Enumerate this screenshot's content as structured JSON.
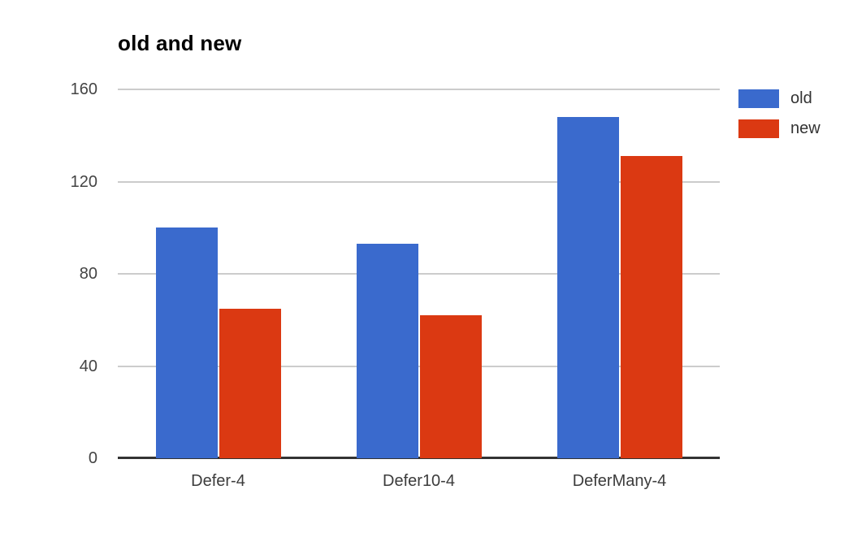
{
  "chart_data": {
    "type": "bar",
    "title": "old and new",
    "categories": [
      "Defer-4",
      "Defer10-4",
      "DeferMany-4"
    ],
    "series": [
      {
        "name": "old",
        "color": "#3A6ACD",
        "values": [
          100,
          93,
          148
        ]
      },
      {
        "name": "new",
        "color": "#DB3912",
        "values": [
          65,
          62,
          131
        ]
      }
    ],
    "xlabel": "",
    "ylabel": "",
    "ylim": [
      0,
      160
    ],
    "yticks": [
      0,
      40,
      80,
      120,
      160
    ],
    "grid": true,
    "legend_position": "right",
    "colors": {
      "gridline": "#cccccc",
      "axis_line": "#333333",
      "tick_label": "#444444",
      "category_label": "#3c3c3c",
      "legend_label": "#333333",
      "title": "#000000",
      "background": "#ffffff"
    }
  }
}
